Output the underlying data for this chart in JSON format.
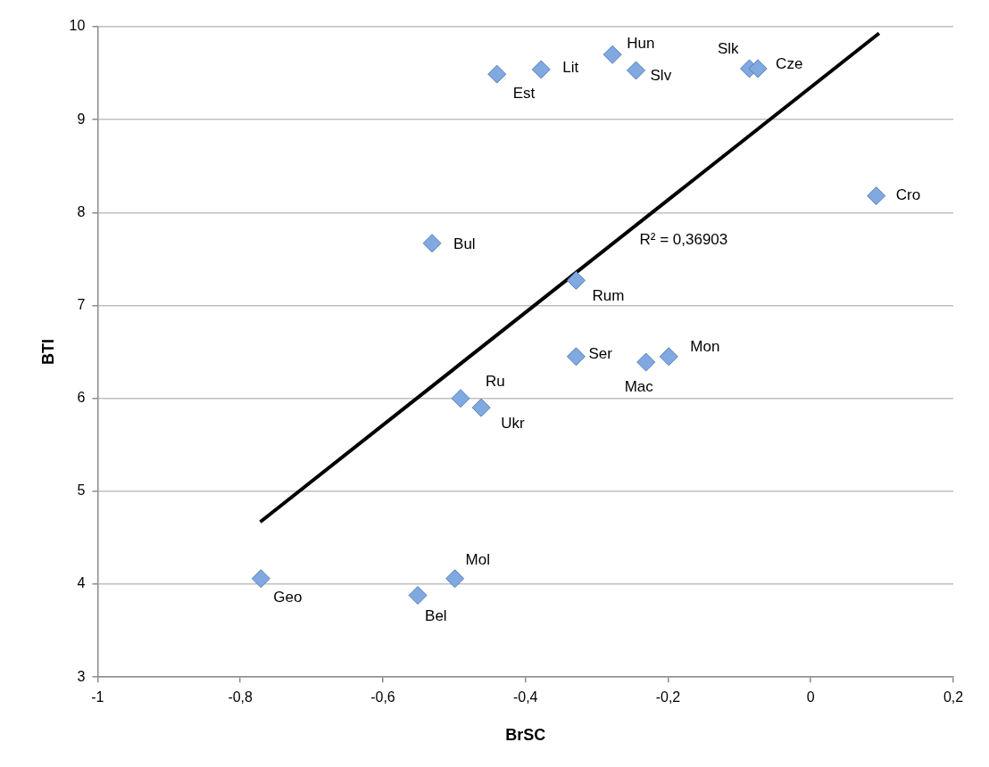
{
  "chart_data": {
    "type": "scatter",
    "xlabel": "BrSC",
    "ylabel": "BTI",
    "xlim": [
      -1,
      0.2
    ],
    "xticks": [
      -1,
      {
        "value": -0.8,
        "label": "-0,8"
      },
      {
        "value": -0.6,
        "label": "-0,6"
      },
      {
        "value": -0.4,
        "label": "-0,4"
      },
      {
        "value": -0.2,
        "label": "-0,2"
      },
      0,
      {
        "value": 0.2,
        "label": "0,2"
      }
    ],
    "ylim": [
      3,
      10
    ],
    "yticks": [
      3,
      4,
      5,
      6,
      7,
      8,
      9,
      10
    ],
    "grid": "y",
    "legend": false,
    "marker": "diamond",
    "annotations": [
      "R² = 0,36903"
    ],
    "series": [
      {
        "type": "scatter",
        "color": "#7fa9e0",
        "x": [
          -0.771,
          -0.551,
          -0.499,
          -0.491,
          -0.462,
          -0.531,
          -0.44,
          -0.378,
          -0.278,
          -0.245,
          -0.086,
          -0.074,
          0.092,
          -0.329,
          -0.329,
          -0.231,
          -0.199
        ],
        "values": [
          4.06,
          3.88,
          4.06,
          6.0,
          5.9,
          7.67,
          9.49,
          9.54,
          9.7,
          9.53,
          9.55,
          9.55,
          8.18,
          7.27,
          6.45,
          6.39,
          6.45
        ],
        "value_labels": [
          "Geo",
          "Bel",
          "Mol",
          "Ru",
          "Ukr",
          "Bul",
          "Est",
          "Lit",
          "Hun",
          "Slv",
          "Slk",
          "Cze",
          "Cro",
          "Rum",
          "Ser",
          "Mac",
          "Mon"
        ]
      },
      {
        "type": "line",
        "color": "#000000",
        "marker": "none",
        "line_style": "solid",
        "x": [
          -0.772,
          0.096
        ],
        "values": [
          4.67,
          9.93
        ]
      }
    ]
  }
}
